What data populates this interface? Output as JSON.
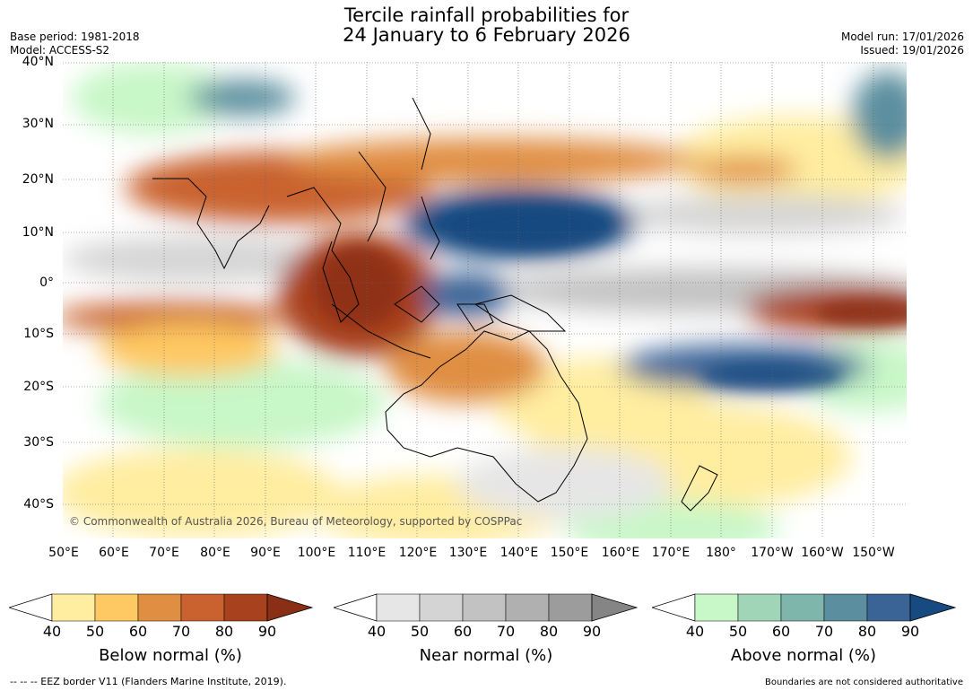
{
  "title": {
    "line1": "Tercile rainfall probabilities for",
    "line2": "24 January to 6 February 2026"
  },
  "meta": {
    "base_period": "Base period: 1981-2018",
    "model": "Model: ACCESS-S2",
    "model_run": "Model run: 17/01/2026",
    "issued": "Issued: 19/01/2026"
  },
  "map": {
    "lat_labels": [
      "40°N",
      "30°N",
      "20°N",
      "10°N",
      "0°",
      "10°S",
      "20°S",
      "30°S",
      "40°S"
    ],
    "lon_labels": [
      "50°E",
      "60°E",
      "70°E",
      "80°E",
      "90°E",
      "100°E",
      "110°E",
      "120°E",
      "130°E",
      "140°E",
      "150°E",
      "160°E",
      "170°E",
      "180°",
      "170°W",
      "160°W",
      "150°W"
    ],
    "copyright": "© Commonwealth of Australia 2026, Bureau of Meteorology, supported by COSPPac"
  },
  "colorbars": [
    {
      "label": "Below normal (%)",
      "ticks": [
        "40",
        "50",
        "60",
        "70",
        "80",
        "90"
      ],
      "colors": [
        "#ffffff",
        "#ffeda0",
        "#fec862",
        "#e08e42",
        "#c9622f",
        "#a8411e",
        "#8a2e15"
      ]
    },
    {
      "label": "Near normal (%)",
      "ticks": [
        "40",
        "50",
        "60",
        "70",
        "80",
        "90"
      ],
      "colors": [
        "#ffffff",
        "#e6e6e6",
        "#d4d4d4",
        "#c2c2c2",
        "#b0b0b0",
        "#9c9c9c",
        "#858585"
      ]
    },
    {
      "label": "Above normal (%)",
      "ticks": [
        "40",
        "50",
        "60",
        "70",
        "80",
        "90"
      ],
      "colors": [
        "#ffffff",
        "#c8f7c8",
        "#a0d5b8",
        "#7fb6ab",
        "#5b8f9f",
        "#3a6496",
        "#174a80"
      ]
    }
  ],
  "footer": {
    "eez": "--  --  -- EEZ border V11 (Flanders Marine Institute, 2019).",
    "boundaries": "Boundaries are not considered authoritative"
  }
}
